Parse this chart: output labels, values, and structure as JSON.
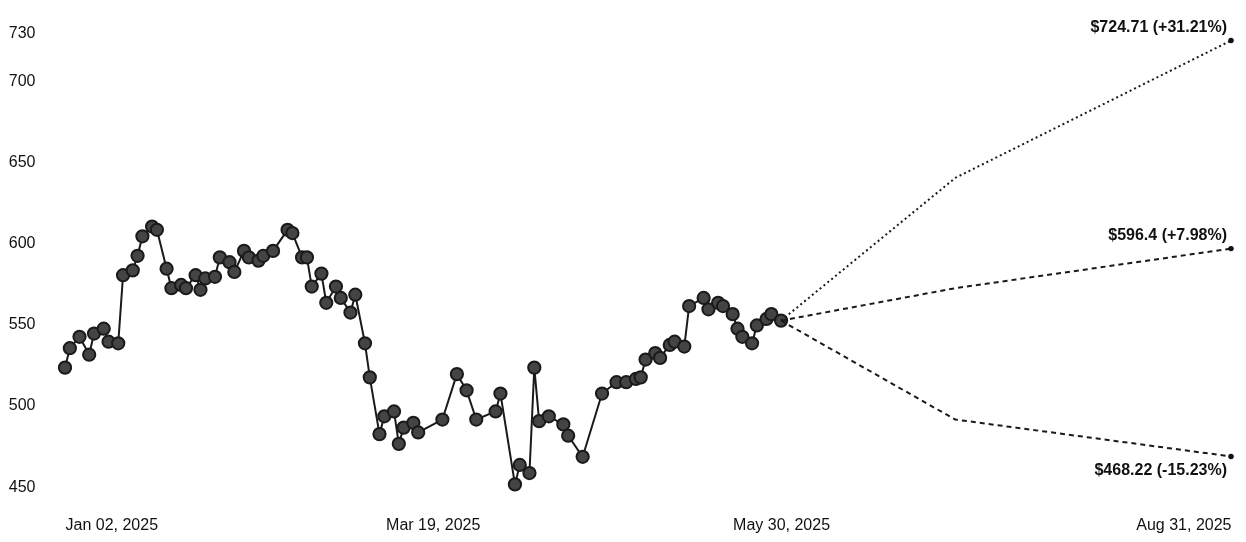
{
  "chart_data": {
    "type": "line",
    "x": [
      "2025-01-02",
      "2025-01-03",
      "2025-01-05",
      "2025-01-07",
      "2025-01-08",
      "2025-01-10",
      "2025-01-11",
      "2025-01-13",
      "2025-01-14",
      "2025-01-16",
      "2025-01-17",
      "2025-01-18",
      "2025-01-20",
      "2025-01-21",
      "2025-01-23",
      "2025-01-24",
      "2025-01-26",
      "2025-01-27",
      "2025-01-29",
      "2025-01-30",
      "2025-01-31",
      "2025-02-02",
      "2025-02-03",
      "2025-02-05",
      "2025-02-06",
      "2025-02-08",
      "2025-02-09",
      "2025-02-11",
      "2025-02-12",
      "2025-02-14",
      "2025-02-17",
      "2025-02-18",
      "2025-02-20",
      "2025-02-21",
      "2025-02-22",
      "2025-02-24",
      "2025-02-25",
      "2025-02-27",
      "2025-02-28",
      "2025-03-02",
      "2025-03-03",
      "2025-03-05",
      "2025-03-06",
      "2025-03-08",
      "2025-03-09",
      "2025-03-11",
      "2025-03-12",
      "2025-03-13",
      "2025-03-15",
      "2025-03-16",
      "2025-03-21",
      "2025-03-24",
      "2025-03-26",
      "2025-03-28",
      "2025-04-01",
      "2025-04-02",
      "2025-04-05",
      "2025-04-06",
      "2025-04-08",
      "2025-04-09",
      "2025-04-10",
      "2025-04-12",
      "2025-04-15",
      "2025-04-16",
      "2025-04-19",
      "2025-04-23",
      "2025-04-26",
      "2025-04-28",
      "2025-04-30",
      "2025-05-01",
      "2025-05-02",
      "2025-05-04",
      "2025-05-05",
      "2025-05-07",
      "2025-05-08",
      "2025-05-10",
      "2025-05-11",
      "2025-05-14",
      "2025-05-15",
      "2025-05-17",
      "2025-05-18",
      "2025-05-20",
      "2025-05-21",
      "2025-05-22",
      "2025-05-24",
      "2025-05-25",
      "2025-05-27",
      "2025-05-28",
      "2025-05-30"
    ],
    "series": [
      {
        "color": "#1a1a1a",
        "marker": "circle",
        "line_style": "solid",
        "values": [
          523,
          535,
          542,
          531,
          544,
          547,
          539,
          538,
          580,
          583,
          592,
          604,
          610,
          608,
          584,
          572,
          574,
          572,
          580,
          571,
          578,
          579,
          591,
          588,
          582,
          595,
          591,
          589,
          592,
          595,
          608,
          606,
          591,
          591,
          573,
          581,
          563,
          573,
          566,
          557,
          568,
          538,
          517,
          482,
          493,
          496,
          476,
          486,
          489,
          483,
          491,
          519,
          509,
          491,
          496,
          507,
          451,
          463,
          458,
          523,
          490,
          493,
          488,
          481,
          468,
          507,
          514,
          514,
          516,
          517,
          528,
          532,
          529,
          537,
          539,
          536,
          561,
          566,
          559,
          563,
          561,
          556,
          547,
          542,
          538,
          549,
          553,
          556,
          552
        ]
      },
      {
        "x": [
          "2025-05-30",
          "2025-07-05",
          "2025-08-31"
        ],
        "color": "#1a1a1a",
        "marker": "none",
        "line_style": "dotted",
        "values": [
          552,
          640,
          724.71
        ]
      },
      {
        "x": [
          "2025-05-30",
          "2025-07-05",
          "2025-08-31"
        ],
        "color": "#1a1a1a",
        "marker": "none",
        "line_style": "dashed",
        "values": [
          552,
          572,
          596.4
        ]
      },
      {
        "x": [
          "2025-05-30",
          "2025-07-05",
          "2025-08-31"
        ],
        "color": "#1a1a1a",
        "marker": "none",
        "line_style": "dashed",
        "values": [
          552,
          491,
          468.22
        ]
      }
    ],
    "xticks": [
      {
        "value": "2025-01-02",
        "label": "Jan 02, 2025"
      },
      {
        "value": "2025-03-19",
        "label": "Mar 19, 2025"
      },
      {
        "value": "2025-05-30",
        "label": "May 30, 2025"
      },
      {
        "value": "2025-08-31",
        "label": "Aug 31, 2025"
      }
    ],
    "xlim": [
      "2025-01-02",
      "2025-08-31"
    ],
    "ylim": [
      450,
      730
    ],
    "yticks": [
      450,
      500,
      550,
      600,
      650,
      700,
      730
    ],
    "annotations": [
      {
        "text": "$724.71 (+31.21%)",
        "x": "2025-08-31",
        "y": 724.71
      },
      {
        "text": "$596.4 (+7.98%)",
        "x": "2025-08-31",
        "y": 596.4
      },
      {
        "text": "$468.22 (-15.23%)",
        "x": "2025-08-31",
        "y": 468.22
      }
    ]
  }
}
